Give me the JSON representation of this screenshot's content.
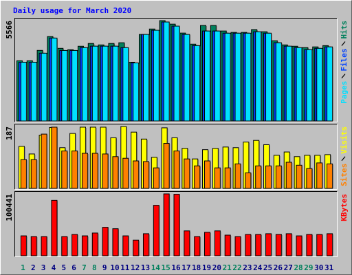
{
  "chart_data": [
    {
      "type": "bar",
      "title": "Daily usage for March 2020",
      "ylim": [
        0,
        5566
      ],
      "yticks": [
        5566
      ],
      "series": [
        {
          "name": "Hits",
          "color": "#00805c",
          "values": [
            3340,
            3340,
            3915,
            4683,
            4030,
            3955,
            4145,
            4300,
            4220,
            4300,
            4340,
            3260,
            4800,
            5100,
            5566,
            5370,
            4875,
            4260,
            5300,
            5300,
            4990,
            4913,
            4913,
            5070,
            4950,
            4450,
            4220,
            4145,
            4070,
            4110,
            4180
          ]
        },
        {
          "name": "Files",
          "color": "#0040ff",
          "values": [
            3260,
            3260,
            3760,
            4600,
            3910,
            3910,
            4070,
            4150,
            4150,
            4150,
            4070,
            3220,
            4800,
            5030,
            5490,
            5260,
            4800,
            4180,
            4990,
            4990,
            4870,
            4870,
            4870,
            4950,
            4870,
            4340,
            4150,
            4070,
            3960,
            4030,
            4110
          ]
        },
        {
          "name": "Pages",
          "color": "#00e0ff",
          "values": [
            3260,
            3260,
            3760,
            4600,
            3910,
            3910,
            4070,
            4150,
            4150,
            4150,
            4070,
            3220,
            4800,
            5030,
            5490,
            5260,
            4800,
            4180,
            4990,
            4990,
            4870,
            4870,
            4870,
            4950,
            4870,
            4340,
            4150,
            4070,
            3960,
            4030,
            4110
          ]
        }
      ]
    },
    {
      "type": "bar",
      "ylim": [
        0,
        187
      ],
      "yticks": [
        187
      ],
      "series": [
        {
          "name": "Visits",
          "color": "#ffff00",
          "values": [
            127,
            104,
            161,
            184,
            123,
            166,
            185,
            185,
            185,
            153,
            187,
            170,
            149,
            94,
            183,
            153,
            121,
            89,
            117,
            121,
            125,
            123,
            140,
            145,
            132,
            100,
            110,
            96,
            100,
            100,
            102
          ]
        },
        {
          "name": "Sites",
          "color": "#ff8000",
          "values": [
            87,
            87,
            164,
            185,
            113,
            113,
            106,
            106,
            104,
            96,
            91,
            83,
            81,
            62,
            136,
            113,
            89,
            68,
            83,
            62,
            62,
            74,
            47,
            68,
            68,
            68,
            79,
            70,
            60,
            77,
            74
          ]
        }
      ]
    },
    {
      "type": "bar",
      "ylim": [
        0,
        100441
      ],
      "yticks": [
        100441
      ],
      "categories": [
        "1",
        "2",
        "3",
        "4",
        "5",
        "6",
        "7",
        "8",
        "9",
        "10",
        "11",
        "12",
        "13",
        "14",
        "15",
        "16",
        "17",
        "18",
        "19",
        "20",
        "21",
        "22",
        "23",
        "24",
        "25",
        "26",
        "27",
        "28",
        "29",
        "30",
        "31"
      ],
      "category_colors": [
        "#00805c",
        "#000080",
        "#000080",
        "#000080",
        "#000080",
        "#000080",
        "#00805c",
        "#00805c",
        "#000080",
        "#000080",
        "#000080",
        "#000080",
        "#000080",
        "#00805c",
        "#00805c",
        "#000080",
        "#000080",
        "#000080",
        "#000080",
        "#000080",
        "#00805c",
        "#00805c",
        "#000080",
        "#000080",
        "#000080",
        "#000080",
        "#000080",
        "#00805c",
        "#00805c",
        "#000080",
        "#000080"
      ],
      "series": [
        {
          "name": "KBytes",
          "color": "#ff0000",
          "values": [
            32300,
            31150,
            31150,
            90000,
            31150,
            34600,
            32300,
            36900,
            46200,
            43900,
            32300,
            25400,
            35800,
            81900,
            100441,
            99800,
            40400,
            31150,
            38100,
            40400,
            33500,
            31150,
            34600,
            34600,
            35800,
            34600,
            35800,
            32300,
            34600,
            34600,
            35800
          ]
        }
      ]
    }
  ]
}
